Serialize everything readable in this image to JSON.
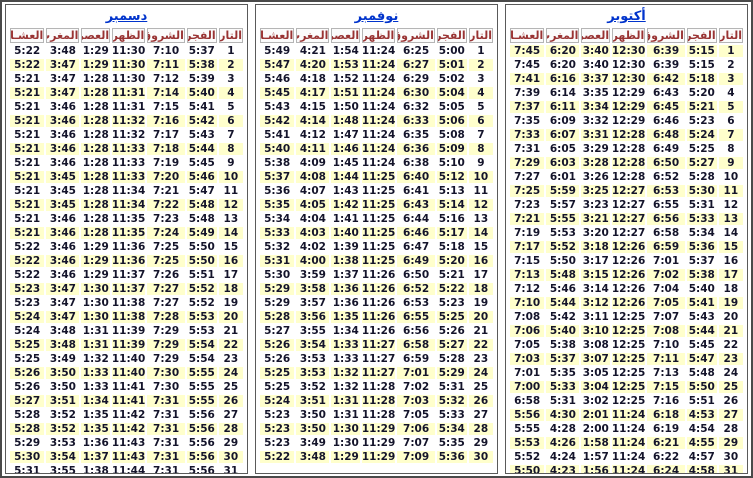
{
  "columns": [
    "التاريخ",
    "الفجر",
    "الشروق",
    "الظهر",
    "العصر",
    "المغرب",
    "العشـاء"
  ],
  "colors": {
    "highlight_row": "#FFFFCC",
    "header_text": "#993333",
    "title_link": "#0033CC",
    "data_text": "#14142B",
    "frame_border": "#4A4A4A"
  },
  "months": [
    {
      "key": "october",
      "title": "أكتوبر",
      "odd_rows_highlighted": true,
      "rows": [
        [
          "1",
          "5:15",
          "6:39",
          "12:30",
          "3:40",
          "6:20",
          "7:45"
        ],
        [
          "2",
          "5:15",
          "6:39",
          "12:30",
          "3:40",
          "6:20",
          "7:45"
        ],
        [
          "3",
          "5:18",
          "6:42",
          "12:30",
          "3:37",
          "6:16",
          "7:41"
        ],
        [
          "4",
          "5:20",
          "6:43",
          "12:29",
          "3:35",
          "6:14",
          "7:39"
        ],
        [
          "5",
          "5:21",
          "6:45",
          "12:29",
          "3:34",
          "6:11",
          "7:37"
        ],
        [
          "6",
          "5:23",
          "6:46",
          "12:29",
          "3:32",
          "6:09",
          "7:35"
        ],
        [
          "7",
          "5:24",
          "6:48",
          "12:28",
          "3:31",
          "6:07",
          "7:33"
        ],
        [
          "8",
          "5:25",
          "6:49",
          "12:28",
          "3:29",
          "6:05",
          "7:31"
        ],
        [
          "9",
          "5:27",
          "6:50",
          "12:28",
          "3:28",
          "6:03",
          "7:29"
        ],
        [
          "10",
          "5:28",
          "6:52",
          "12:28",
          "3:26",
          "6:01",
          "7:27"
        ],
        [
          "11",
          "5:30",
          "6:53",
          "12:27",
          "3:25",
          "5:59",
          "7:25"
        ],
        [
          "12",
          "5:31",
          "6:55",
          "12:27",
          "3:23",
          "5:57",
          "7:23"
        ],
        [
          "13",
          "5:33",
          "6:56",
          "12:27",
          "3:21",
          "5:55",
          "7:21"
        ],
        [
          "14",
          "5:34",
          "6:58",
          "12:27",
          "3:20",
          "5:53",
          "7:19"
        ],
        [
          "15",
          "5:36",
          "6:59",
          "12:26",
          "3:18",
          "5:52",
          "7:17"
        ],
        [
          "16",
          "5:37",
          "7:01",
          "12:26",
          "3:17",
          "5:50",
          "7:15"
        ],
        [
          "17",
          "5:38",
          "7:02",
          "12:26",
          "3:15",
          "5:48",
          "7:13"
        ],
        [
          "18",
          "5:40",
          "7:04",
          "12:26",
          "3:14",
          "5:46",
          "7:12"
        ],
        [
          "19",
          "5:41",
          "7:05",
          "12:26",
          "3:12",
          "5:44",
          "7:10"
        ],
        [
          "20",
          "5:43",
          "7:07",
          "12:25",
          "3:11",
          "5:42",
          "7:08"
        ],
        [
          "21",
          "5:44",
          "7:08",
          "12:25",
          "3:10",
          "5:40",
          "7:06"
        ],
        [
          "22",
          "5:45",
          "7:10",
          "12:25",
          "3:08",
          "5:38",
          "7:05"
        ],
        [
          "23",
          "5:47",
          "7:11",
          "12:25",
          "3:07",
          "5:37",
          "7:03"
        ],
        [
          "24",
          "5:48",
          "7:13",
          "12:25",
          "3:05",
          "5:35",
          "7:01"
        ],
        [
          "25",
          "5:50",
          "7:15",
          "12:25",
          "3:04",
          "5:33",
          "7:00"
        ],
        [
          "26",
          "5:51",
          "7:16",
          "12:25",
          "3:02",
          "5:31",
          "6:58"
        ],
        [
          "27",
          "4:53",
          "6:18",
          "11:24",
          "2:01",
          "4:30",
          "5:56"
        ],
        [
          "28",
          "4:54",
          "6:19",
          "11:24",
          "2:00",
          "4:28",
          "5:55"
        ],
        [
          "29",
          "4:55",
          "6:21",
          "11:24",
          "1:58",
          "4:26",
          "5:53"
        ],
        [
          "30",
          "4:57",
          "6:22",
          "11:24",
          "1:57",
          "4:24",
          "5:52"
        ],
        [
          "31",
          "4:58",
          "6:24",
          "11:24",
          "1:56",
          "4:23",
          "5:50"
        ]
      ]
    },
    {
      "key": "november",
      "title": "نوفمبر",
      "odd_rows_highlighted": false,
      "rows": [
        [
          "1",
          "5:00",
          "6:25",
          "11:24",
          "1:54",
          "4:21",
          "5:49"
        ],
        [
          "2",
          "5:01",
          "6:27",
          "11:24",
          "1:53",
          "4:20",
          "5:47"
        ],
        [
          "3",
          "5:02",
          "6:29",
          "11:24",
          "1:52",
          "4:18",
          "5:46"
        ],
        [
          "4",
          "5:04",
          "6:30",
          "11:24",
          "1:51",
          "4:17",
          "5:45"
        ],
        [
          "5",
          "5:05",
          "6:32",
          "11:24",
          "1:50",
          "4:15",
          "5:43"
        ],
        [
          "6",
          "5:06",
          "6:33",
          "11:24",
          "1:48",
          "4:14",
          "5:42"
        ],
        [
          "7",
          "5:08",
          "6:35",
          "11:24",
          "1:47",
          "4:12",
          "5:41"
        ],
        [
          "8",
          "5:09",
          "6:36",
          "11:24",
          "1:46",
          "4:11",
          "5:40"
        ],
        [
          "9",
          "5:10",
          "6:38",
          "11:24",
          "1:45",
          "4:09",
          "5:38"
        ],
        [
          "10",
          "5:12",
          "6:40",
          "11:25",
          "1:44",
          "4:08",
          "5:37"
        ],
        [
          "11",
          "5:13",
          "6:41",
          "11:25",
          "1:43",
          "4:07",
          "5:36"
        ],
        [
          "12",
          "5:14",
          "6:43",
          "11:25",
          "1:42",
          "4:05",
          "5:35"
        ],
        [
          "13",
          "5:16",
          "6:44",
          "11:25",
          "1:41",
          "4:04",
          "5:34"
        ],
        [
          "14",
          "5:17",
          "6:46",
          "11:25",
          "1:40",
          "4:03",
          "5:33"
        ],
        [
          "15",
          "5:18",
          "6:47",
          "11:25",
          "1:39",
          "4:02",
          "5:32"
        ],
        [
          "16",
          "5:20",
          "6:49",
          "11:25",
          "1:38",
          "4:00",
          "5:31"
        ],
        [
          "17",
          "5:21",
          "6:50",
          "11:26",
          "1:37",
          "3:59",
          "5:30"
        ],
        [
          "18",
          "5:22",
          "6:52",
          "11:26",
          "1:36",
          "3:58",
          "5:29"
        ],
        [
          "19",
          "5:23",
          "6:53",
          "11:26",
          "1:36",
          "3:57",
          "5:29"
        ],
        [
          "20",
          "5:25",
          "6:55",
          "11:26",
          "1:35",
          "3:56",
          "5:28"
        ],
        [
          "21",
          "5:26",
          "6:56",
          "11:26",
          "1:34",
          "3:55",
          "5:27"
        ],
        [
          "22",
          "5:27",
          "6:58",
          "11:27",
          "1:33",
          "3:54",
          "5:26"
        ],
        [
          "23",
          "5:28",
          "6:59",
          "11:27",
          "1:33",
          "3:53",
          "5:26"
        ],
        [
          "24",
          "5:29",
          "7:01",
          "11:27",
          "1:32",
          "3:53",
          "5:25"
        ],
        [
          "25",
          "5:31",
          "7:02",
          "11:28",
          "1:32",
          "3:52",
          "5:25"
        ],
        [
          "26",
          "5:32",
          "7:03",
          "11:28",
          "1:31",
          "3:51",
          "5:24"
        ],
        [
          "27",
          "5:33",
          "7:05",
          "11:28",
          "1:31",
          "3:50",
          "5:23"
        ],
        [
          "28",
          "5:34",
          "7:06",
          "11:29",
          "1:30",
          "3:50",
          "5:23"
        ],
        [
          "29",
          "5:35",
          "7:07",
          "11:29",
          "1:30",
          "3:49",
          "5:23"
        ],
        [
          "30",
          "5:36",
          "7:09",
          "11:29",
          "1:29",
          "3:48",
          "5:22"
        ]
      ]
    },
    {
      "key": "december",
      "title": "دسمبر",
      "odd_rows_highlighted": false,
      "rows": [
        [
          "1",
          "5:37",
          "7:10",
          "11:30",
          "1:29",
          "3:48",
          "5:22"
        ],
        [
          "2",
          "5:38",
          "7:11",
          "11:30",
          "1:29",
          "3:47",
          "5:22"
        ],
        [
          "3",
          "5:39",
          "7:12",
          "11:30",
          "1:28",
          "3:47",
          "5:21"
        ],
        [
          "4",
          "5:40",
          "7:14",
          "11:31",
          "1:28",
          "3:47",
          "5:21"
        ],
        [
          "5",
          "5:41",
          "7:15",
          "11:31",
          "1:28",
          "3:46",
          "5:21"
        ],
        [
          "6",
          "5:42",
          "7:16",
          "11:32",
          "1:28",
          "3:46",
          "5:21"
        ],
        [
          "7",
          "5:43",
          "7:17",
          "11:32",
          "1:28",
          "3:46",
          "5:21"
        ],
        [
          "8",
          "5:44",
          "7:18",
          "11:33",
          "1:28",
          "3:46",
          "5:21"
        ],
        [
          "9",
          "5:45",
          "7:19",
          "11:33",
          "1:28",
          "3:46",
          "5:21"
        ],
        [
          "10",
          "5:46",
          "7:20",
          "11:33",
          "1:28",
          "3:45",
          "5:21"
        ],
        [
          "11",
          "5:47",
          "7:21",
          "11:34",
          "1:28",
          "3:45",
          "5:21"
        ],
        [
          "12",
          "5:48",
          "7:22",
          "11:34",
          "1:28",
          "3:45",
          "5:21"
        ],
        [
          "13",
          "5:48",
          "7:23",
          "11:35",
          "1:28",
          "3:46",
          "5:21"
        ],
        [
          "14",
          "5:49",
          "7:24",
          "11:35",
          "1:28",
          "3:46",
          "5:21"
        ],
        [
          "15",
          "5:50",
          "7:25",
          "11:36",
          "1:29",
          "3:46",
          "5:22"
        ],
        [
          "16",
          "5:50",
          "7:25",
          "11:36",
          "1:29",
          "3:46",
          "5:22"
        ],
        [
          "17",
          "5:51",
          "7:26",
          "11:37",
          "1:29",
          "3:46",
          "5:22"
        ],
        [
          "18",
          "5:52",
          "7:27",
          "11:37",
          "1:30",
          "3:47",
          "5:23"
        ],
        [
          "19",
          "5:52",
          "7:27",
          "11:38",
          "1:30",
          "3:47",
          "5:23"
        ],
        [
          "20",
          "5:53",
          "7:28",
          "11:38",
          "1:30",
          "3:47",
          "5:24"
        ],
        [
          "21",
          "5:53",
          "7:29",
          "11:39",
          "1:31",
          "3:48",
          "5:24"
        ],
        [
          "22",
          "5:54",
          "7:29",
          "11:39",
          "1:31",
          "3:48",
          "5:25"
        ],
        [
          "23",
          "5:54",
          "7:29",
          "11:40",
          "1:32",
          "3:49",
          "5:25"
        ],
        [
          "24",
          "5:55",
          "7:30",
          "11:40",
          "1:33",
          "3:50",
          "5:26"
        ],
        [
          "25",
          "5:55",
          "7:30",
          "11:41",
          "1:33",
          "3:50",
          "5:26"
        ],
        [
          "26",
          "5:55",
          "7:31",
          "11:41",
          "1:34",
          "3:51",
          "5:27"
        ],
        [
          "27",
          "5:56",
          "7:31",
          "11:42",
          "1:35",
          "3:52",
          "5:28"
        ],
        [
          "28",
          "5:56",
          "7:31",
          "11:42",
          "1:35",
          "3:52",
          "5:28"
        ],
        [
          "29",
          "5:56",
          "7:31",
          "11:43",
          "1:36",
          "3:53",
          "5:29"
        ],
        [
          "30",
          "5:56",
          "7:31",
          "11:43",
          "1:37",
          "3:54",
          "5:30"
        ],
        [
          "31",
          "5:56",
          "7:31",
          "11:44",
          "1:38",
          "3:55",
          "5:31"
        ]
      ]
    }
  ]
}
